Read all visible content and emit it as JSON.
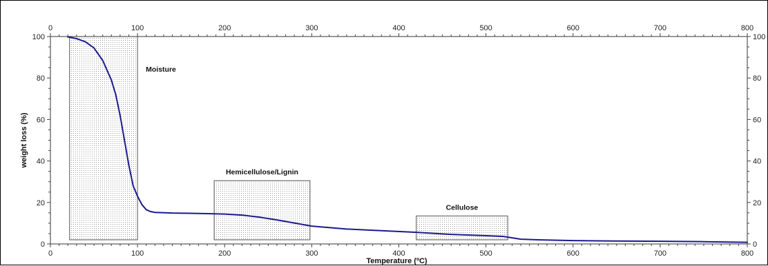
{
  "chart_data": {
    "type": "line",
    "xlabel": "Temperature (ºC)",
    "ylabel": "weight loss (%)",
    "xlim": [
      0,
      800
    ],
    "ylim": [
      0,
      100
    ],
    "x_ticks": [
      0,
      100,
      200,
      300,
      400,
      500,
      600,
      700,
      800
    ],
    "y_ticks": [
      0,
      20,
      40,
      60,
      80,
      100
    ],
    "line_color": "#1a1a8c",
    "grid": false,
    "series": [
      {
        "x": [
          20,
          30,
          40,
          50,
          60,
          70,
          75,
          80,
          85,
          90,
          95,
          100,
          105,
          110,
          115,
          120,
          140,
          160,
          180,
          200,
          220,
          240,
          260,
          280,
          300,
          340,
          380,
          420,
          460,
          500,
          520,
          540,
          560,
          600,
          650,
          700,
          750,
          800
        ],
        "y": [
          99.8,
          99.0,
          97.5,
          94.5,
          88.5,
          79,
          72,
          62,
          50,
          38,
          28,
          23,
          19,
          16.5,
          15.6,
          15.2,
          14.9,
          14.8,
          14.6,
          14.4,
          13.9,
          12.9,
          11.6,
          10.1,
          8.6,
          7.2,
          6.4,
          5.6,
          4.6,
          4.0,
          3.6,
          2.3,
          2.0,
          1.6,
          1.4,
          1.3,
          1.1,
          0.8
        ]
      }
    ],
    "regions": [
      {
        "label": "Moisture",
        "x0": 22,
        "x1": 100,
        "y0": 2,
        "y1": 100
      },
      {
        "label": "Hemicellulose/Lignin",
        "x0": 188,
        "x1": 298,
        "y0": 2,
        "y1": 30.5
      },
      {
        "label": "Cellulose",
        "x0": 420,
        "x1": 525,
        "y0": 2,
        "y1": 13.5
      }
    ]
  }
}
